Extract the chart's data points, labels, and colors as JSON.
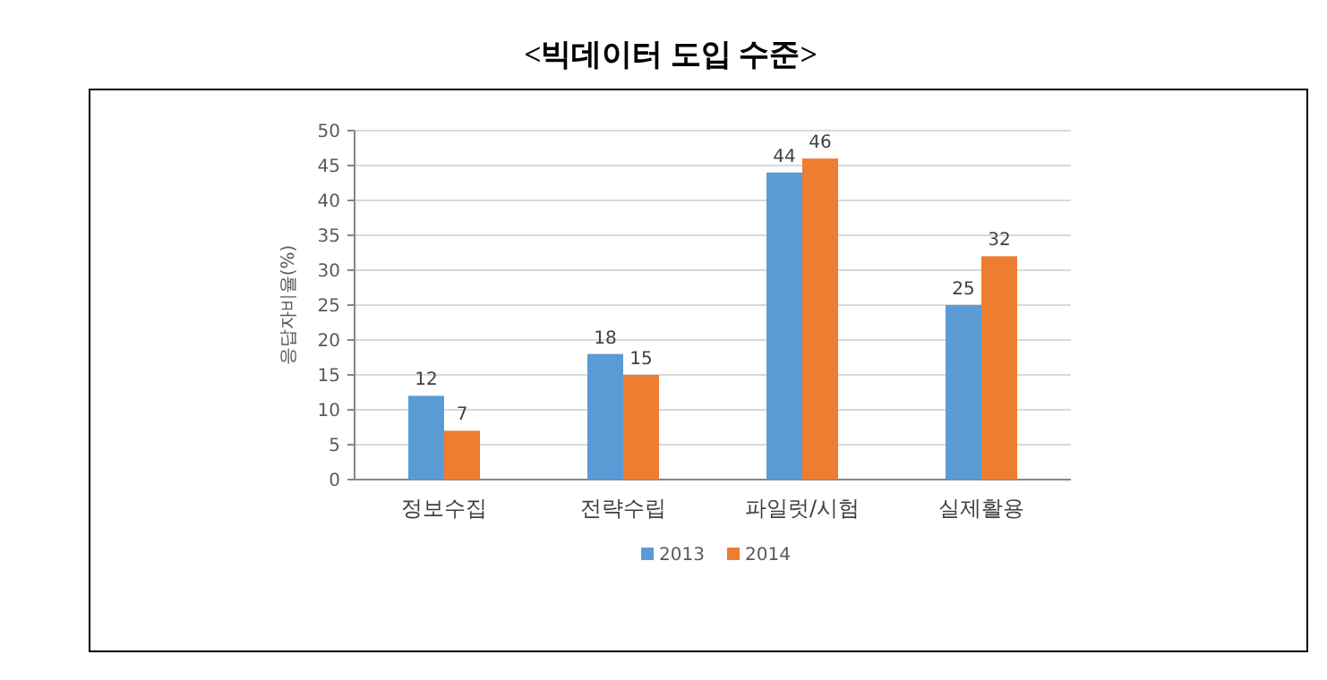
{
  "chart_data": {
    "type": "bar",
    "title": "<빅데이터 도입 수준>",
    "ylabel": "응답자비율(%)",
    "categories": [
      "정보수집",
      "전략수립",
      "파일럿/시험",
      "실제활용"
    ],
    "series": [
      {
        "name": "2013",
        "color": "#5b9bd5",
        "values": [
          12,
          18,
          44,
          25
        ]
      },
      {
        "name": "2014",
        "color": "#ed7d31",
        "values": [
          7,
          15,
          46,
          32
        ]
      }
    ],
    "ylim": [
      0,
      50
    ],
    "yticks": [
      0,
      5,
      10,
      15,
      20,
      25,
      30,
      35,
      40,
      45,
      50
    ],
    "grid": "y",
    "legend": "bottom",
    "data_labels": true
  }
}
